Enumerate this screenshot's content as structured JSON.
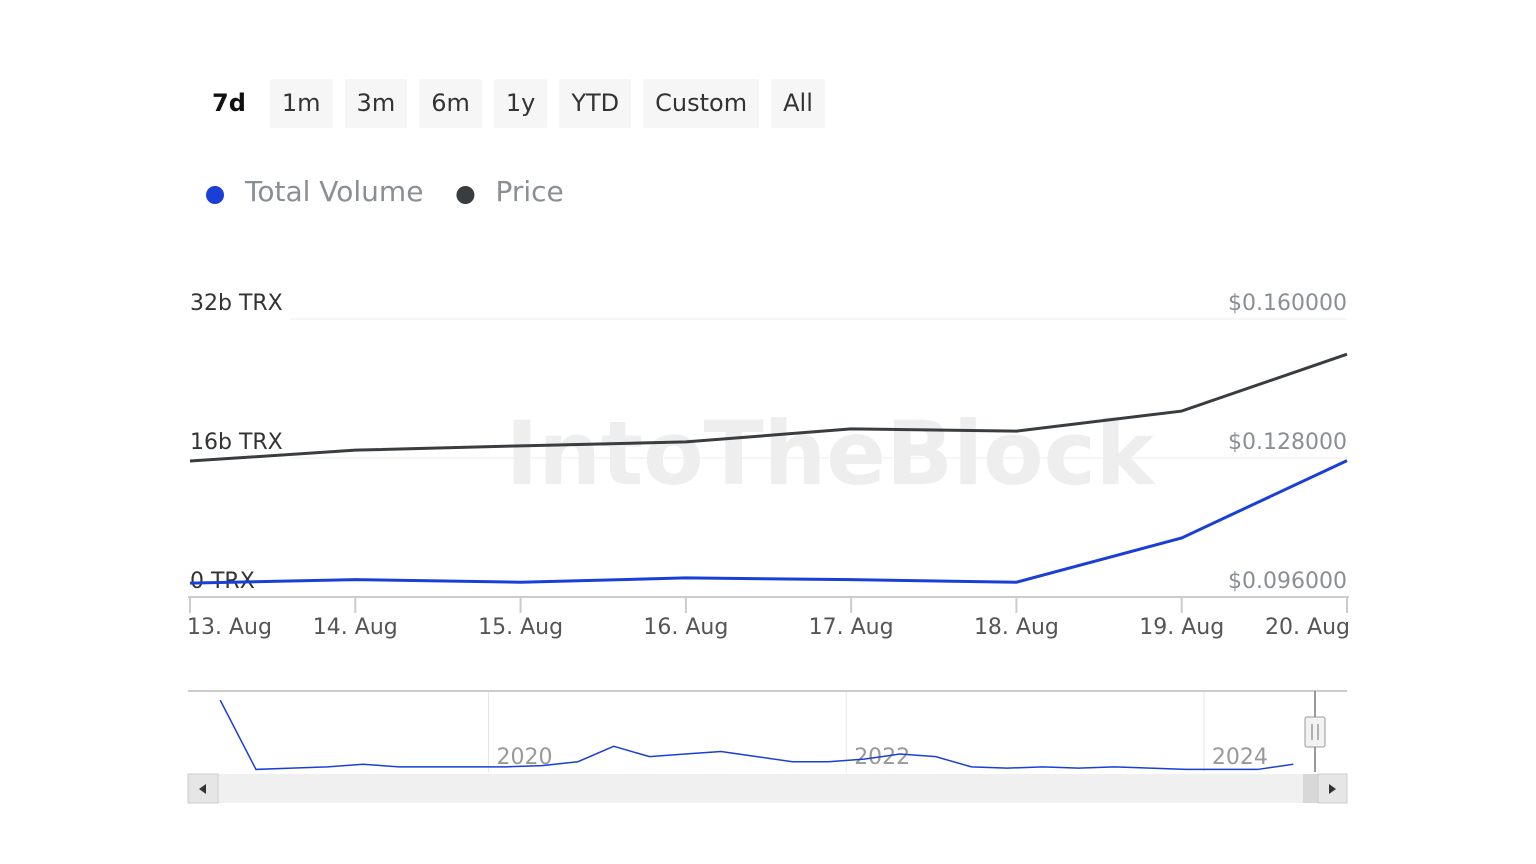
{
  "range_buttons": [
    "7d",
    "1m",
    "3m",
    "6m",
    "1y",
    "YTD",
    "Custom",
    "All"
  ],
  "selected_range": "7d",
  "watermark": "IntoTheBlock",
  "chart_data": {
    "type": "line",
    "categories": [
      "13. Aug",
      "14. Aug",
      "15. Aug",
      "16. Aug",
      "17. Aug",
      "18. Aug",
      "19. Aug",
      "20. Aug"
    ],
    "series": [
      {
        "name": "Total Volume",
        "color": "#1a3fd6",
        "values": [
          1.6,
          2.0,
          1.7,
          2.2,
          2.0,
          1.7,
          6.8,
          15.7
        ]
      },
      {
        "name": "Price",
        "color": "#3a3d40",
        "axis": "y2",
        "values": [
          0.1273,
          0.1298,
          0.1308,
          0.1317,
          0.1347,
          0.1342,
          0.1388,
          0.1519
        ]
      }
    ],
    "ylim": [
      0,
      32
    ],
    "yticks": [
      {
        "value": 0,
        "label": "0 TRX"
      },
      {
        "value": 16,
        "label": "16b TRX"
      },
      {
        "value": 32,
        "label": "32b TRX"
      }
    ],
    "y2lim": [
      0.096,
      0.16
    ],
    "y2ticks": [
      {
        "value": 0.096,
        "label": "$0.096000"
      },
      {
        "value": 0.128,
        "label": "$0.128000"
      },
      {
        "value": 0.16,
        "label": "$0.160000"
      }
    ],
    "grid": true
  },
  "navigator": {
    "type": "line",
    "color": "#1a3fd6",
    "x": [
      2018.5,
      2018.7,
      2018.9,
      2019.1,
      2019.3,
      2019.5,
      2019.7,
      2019.9,
      2020.1,
      2020.3,
      2020.5,
      2020.7,
      2020.9,
      2021.1,
      2021.3,
      2021.5,
      2021.7,
      2021.9,
      2022.1,
      2022.3,
      2022.5,
      2022.7,
      2022.9,
      2023.1,
      2023.3,
      2023.5,
      2023.7,
      2023.9,
      2024.1,
      2024.3,
      2024.5
    ],
    "values": [
      28,
      1,
      1.5,
      2,
      3,
      2,
      2,
      2,
      2,
      2.5,
      4,
      10,
      6,
      7,
      8,
      6,
      4,
      4,
      5,
      7,
      6,
      2,
      1.5,
      2,
      1.5,
      2,
      1.5,
      1,
      1,
      1,
      3
    ],
    "xlim": [
      2018.32,
      2024.8
    ],
    "ylim": [
      0,
      30
    ],
    "xticks": [
      2020,
      2022,
      2024
    ]
  }
}
